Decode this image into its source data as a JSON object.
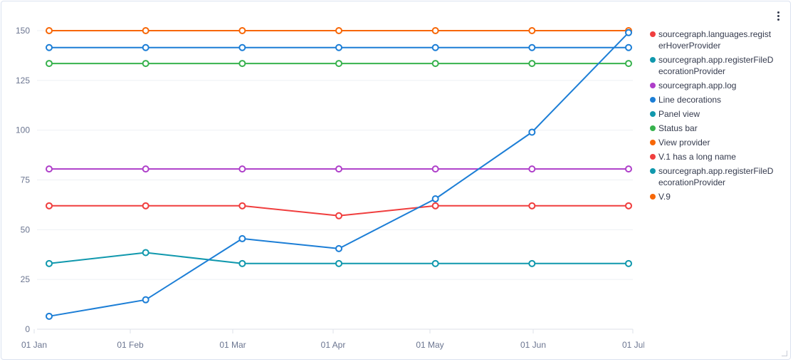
{
  "card": {
    "menu_icon": "kebab-menu-icon"
  },
  "chart_data": {
    "type": "line",
    "x": [
      "01 Jan",
      "01 Feb",
      "01 Mar",
      "01 Apr",
      "01 May",
      "01 Jun",
      "01 Jul"
    ],
    "yticks": [
      "0",
      "25",
      "50",
      "75",
      "100",
      "125",
      "150"
    ],
    "ylim": [
      0,
      150
    ],
    "grid": true,
    "legend_position": "right",
    "series": [
      {
        "name": "V.9",
        "color": "#f76707",
        "values": [
          150,
          150,
          150,
          150,
          150,
          150,
          150
        ]
      },
      {
        "name": "Line decorations",
        "color": "#1c7ed6",
        "values": [
          141.5,
          141.5,
          141.5,
          141.5,
          141.5,
          141.5,
          141.5
        ]
      },
      {
        "name": "Status bar",
        "color": "#37b24d",
        "values": [
          133.5,
          133.5,
          133.5,
          133.5,
          133.5,
          133.5,
          133.5
        ]
      },
      {
        "name": "sourcegraph.app.log",
        "color": "#ae3ec9",
        "values": [
          80.5,
          80.5,
          80.5,
          80.5,
          80.5,
          80.5,
          80.5
        ]
      },
      {
        "name": "sourcegraph.languages.registerHoverProvider",
        "color": "#f03e3e",
        "values": [
          62,
          62,
          62,
          57,
          62,
          62,
          62
        ]
      },
      {
        "name": "sourcegraph.app.registerFileDecorationProvider",
        "color": "#1098ad",
        "values": [
          33,
          38.5,
          33,
          33,
          33,
          33,
          33
        ]
      },
      {
        "name": "",
        "color": "#1c7ed6",
        "values": [
          6.5,
          14.8,
          45.5,
          40.5,
          65.5,
          99,
          149
        ]
      }
    ]
  },
  "legend": [
    {
      "label": "sourcegraph.languages.registerHoverProvider",
      "color": "#f03e3e"
    },
    {
      "label": "sourcegraph.app.registerFileDecorationProvider",
      "color": "#1098ad"
    },
    {
      "label": "sourcegraph.app.log",
      "color": "#ae3ec9"
    },
    {
      "label": "Line decorations",
      "color": "#1c7ed6"
    },
    {
      "label": "Panel view",
      "color": "#1098ad"
    },
    {
      "label": "Status bar",
      "color": "#37b24d"
    },
    {
      "label": "View provider",
      "color": "#f76707"
    },
    {
      "label": "V.1 has a long name",
      "color": "#f03e3e"
    },
    {
      "label": "sourcegraph.app.registerFileDecorationProvider",
      "color": "#1098ad"
    },
    {
      "label": "V.9",
      "color": "#f76707"
    }
  ]
}
